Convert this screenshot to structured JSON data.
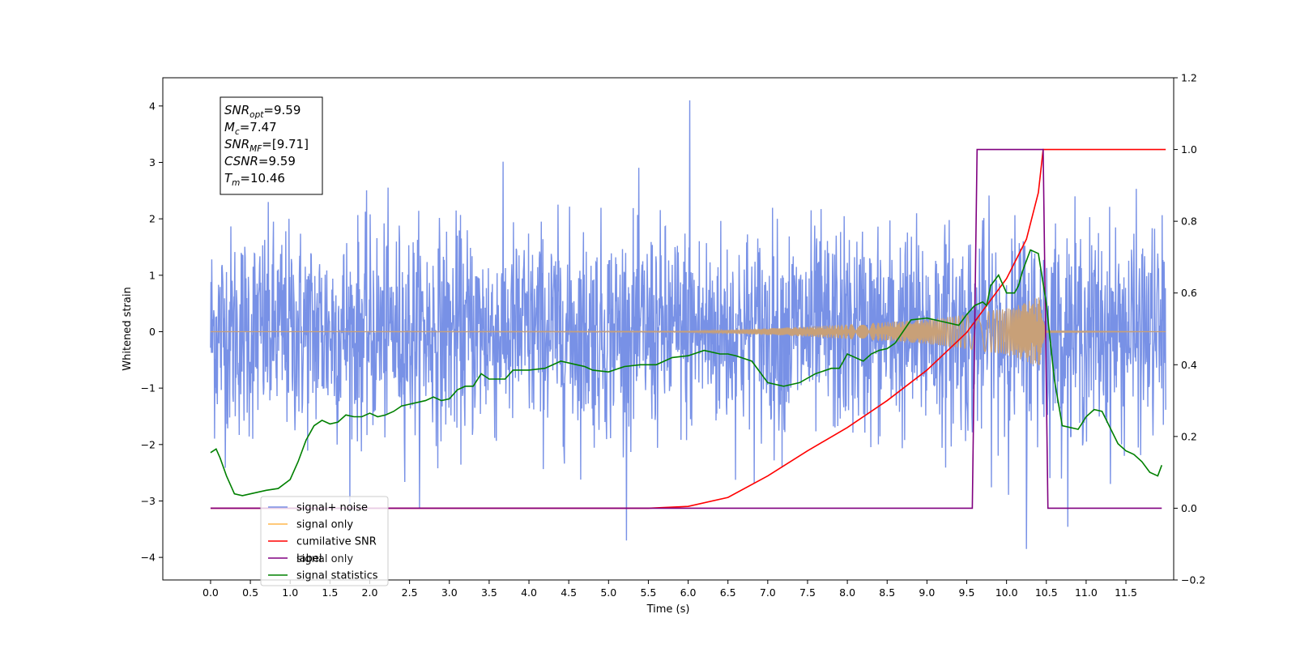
{
  "chart_data": {
    "type": "line",
    "xlabel": "Time (s)",
    "ylabel": "Whitened strain",
    "xlim": [
      -0.6,
      12.1
    ],
    "ylim": [
      -4.4,
      4.5
    ],
    "ylim_right": [
      -0.2,
      1.2
    ],
    "x_ticks": [
      0.0,
      0.5,
      1.0,
      1.5,
      2.0,
      2.5,
      3.0,
      3.5,
      4.0,
      4.5,
      5.0,
      5.5,
      6.0,
      6.5,
      7.0,
      7.5,
      8.0,
      8.5,
      9.0,
      9.5,
      10.0,
      10.5,
      11.0,
      11.5
    ],
    "x_tick_labels": [
      "0.0",
      "0.5",
      "1.0",
      "1.5",
      "2.0",
      "2.5",
      "3.0",
      "3.5",
      "4.0",
      "4.5",
      "5.0",
      "5.5",
      "6.0",
      "6.5",
      "7.0",
      "7.5",
      "8.0",
      "8.5",
      "9.0",
      "9.5",
      "10.0",
      "10.5",
      "11.0",
      "11.5"
    ],
    "y_ticks": [
      -4,
      -3,
      -2,
      -1,
      0,
      1,
      2,
      3,
      4
    ],
    "y_tick_labels": [
      "−4",
      "−3",
      "−2",
      "−1",
      "0",
      "1",
      "2",
      "3",
      "4"
    ],
    "y_right_ticks": [
      -0.2,
      0.0,
      0.2,
      0.4,
      0.6,
      0.8,
      1.0,
      1.2
    ],
    "y_right_tick_labels": [
      "−0.2",
      "0.0",
      "0.2",
      "0.4",
      "0.6",
      "0.8",
      "1.0",
      "1.2"
    ],
    "grid": false,
    "legend_position": "lower-left",
    "annotation": {
      "lines": [
        {
          "sym": "SNR",
          "sub": "opt",
          "value": "=9.59"
        },
        {
          "sym": "M",
          "sub": "c",
          "value": "=7.47"
        },
        {
          "sym": "SNR",
          "sub": "MF",
          "value": "=[9.71]"
        },
        {
          "sym": "CSNR",
          "sub": "",
          "value": "=9.59"
        },
        {
          "sym": "T",
          "sub": "m",
          "value": "=10.46"
        }
      ]
    },
    "series": [
      {
        "name": "signal+ noise",
        "color": "#7891e6",
        "axis": "left",
        "kind": "noise",
        "x_range": [
          0.0,
          12.0
        ],
        "typical_range": [
          -2.3,
          2.5
        ],
        "peak_max": 4.1,
        "peak_max_x": 6.02,
        "peak_min": -3.85,
        "peak_min_x": 10.25
      },
      {
        "name": "signal only",
        "color": "#ffb74d",
        "axis": "left",
        "kind": "chirp",
        "envelope": {
          "x": [
            0.0,
            6.0,
            6.5,
            7.0,
            7.5,
            8.0,
            8.5,
            9.0,
            9.5,
            10.0,
            10.2,
            10.4,
            10.46,
            10.5,
            12.0
          ],
          "amp": [
            0.0,
            0.01,
            0.03,
            0.06,
            0.09,
            0.13,
            0.17,
            0.22,
            0.3,
            0.42,
            0.5,
            0.62,
            0.5,
            0.02,
            0.0
          ]
        }
      },
      {
        "name": "cumilative SNR",
        "color": "#ff0000",
        "axis": "right",
        "x": [
          0.0,
          5.5,
          6.0,
          6.5,
          7.0,
          7.5,
          8.0,
          8.5,
          9.0,
          9.5,
          10.0,
          10.25,
          10.4,
          10.46,
          10.5,
          12.0
        ],
        "y": [
          0.0,
          0.0,
          0.005,
          0.03,
          0.09,
          0.16,
          0.225,
          0.3,
          0.385,
          0.49,
          0.64,
          0.75,
          0.88,
          1.0,
          1.0,
          1.0
        ]
      },
      {
        "name": "label",
        "color": "#800080",
        "axis": "right",
        "x": [
          0.0,
          9.57,
          9.63,
          10.46,
          10.52,
          11.95
        ],
        "y": [
          0.0,
          0.0,
          1.0,
          1.0,
          0.0,
          0.0
        ]
      },
      {
        "name": "signal statistics",
        "color": "#008000",
        "axis": "right",
        "x": [
          0.0,
          0.07,
          0.12,
          0.2,
          0.3,
          0.4,
          0.5,
          0.7,
          0.85,
          1.0,
          1.1,
          1.2,
          1.3,
          1.4,
          1.5,
          1.6,
          1.7,
          1.8,
          1.9,
          2.0,
          2.1,
          2.2,
          2.3,
          2.4,
          2.5,
          2.7,
          2.8,
          2.9,
          3.0,
          3.1,
          3.2,
          3.3,
          3.4,
          3.5,
          3.7,
          3.8,
          3.9,
          4.0,
          4.2,
          4.4,
          4.6,
          4.7,
          4.8,
          5.0,
          5.2,
          5.4,
          5.6,
          5.8,
          6.0,
          6.2,
          6.4,
          6.5,
          6.6,
          6.8,
          7.0,
          7.2,
          7.4,
          7.6,
          7.8,
          7.9,
          8.0,
          8.2,
          8.3,
          8.4,
          8.5,
          8.6,
          8.8,
          9.0,
          9.2,
          9.4,
          9.5,
          9.6,
          9.7,
          9.75,
          9.8,
          9.9,
          10.0,
          10.1,
          10.15,
          10.2,
          10.3,
          10.4,
          10.5,
          10.6,
          10.7,
          10.9,
          11.0,
          11.1,
          11.2,
          11.4,
          11.5,
          11.6,
          11.7,
          11.8,
          11.9,
          11.95
        ],
        "y": [
          0.155,
          0.165,
          0.14,
          0.09,
          0.04,
          0.035,
          0.04,
          0.05,
          0.055,
          0.08,
          0.13,
          0.19,
          0.23,
          0.245,
          0.235,
          0.24,
          0.26,
          0.255,
          0.255,
          0.265,
          0.255,
          0.26,
          0.27,
          0.285,
          0.29,
          0.3,
          0.31,
          0.3,
          0.305,
          0.33,
          0.34,
          0.34,
          0.375,
          0.36,
          0.36,
          0.385,
          0.385,
          0.385,
          0.39,
          0.41,
          0.4,
          0.395,
          0.385,
          0.38,
          0.395,
          0.4,
          0.4,
          0.42,
          0.425,
          0.44,
          0.43,
          0.43,
          0.425,
          0.41,
          0.35,
          0.34,
          0.35,
          0.375,
          0.39,
          0.39,
          0.43,
          0.41,
          0.43,
          0.44,
          0.445,
          0.46,
          0.525,
          0.53,
          0.52,
          0.51,
          0.54,
          0.565,
          0.575,
          0.565,
          0.62,
          0.65,
          0.6,
          0.6,
          0.62,
          0.66,
          0.72,
          0.71,
          0.57,
          0.36,
          0.23,
          0.22,
          0.255,
          0.275,
          0.27,
          0.18,
          0.16,
          0.15,
          0.13,
          0.1,
          0.09,
          0.12
        ]
      }
    ],
    "legend_labels": [
      "signal+ noise",
      "signal only",
      "cumilative SNR",
      "label",
      "signal statistics"
    ],
    "hidden_legend_text": "signal only"
  }
}
